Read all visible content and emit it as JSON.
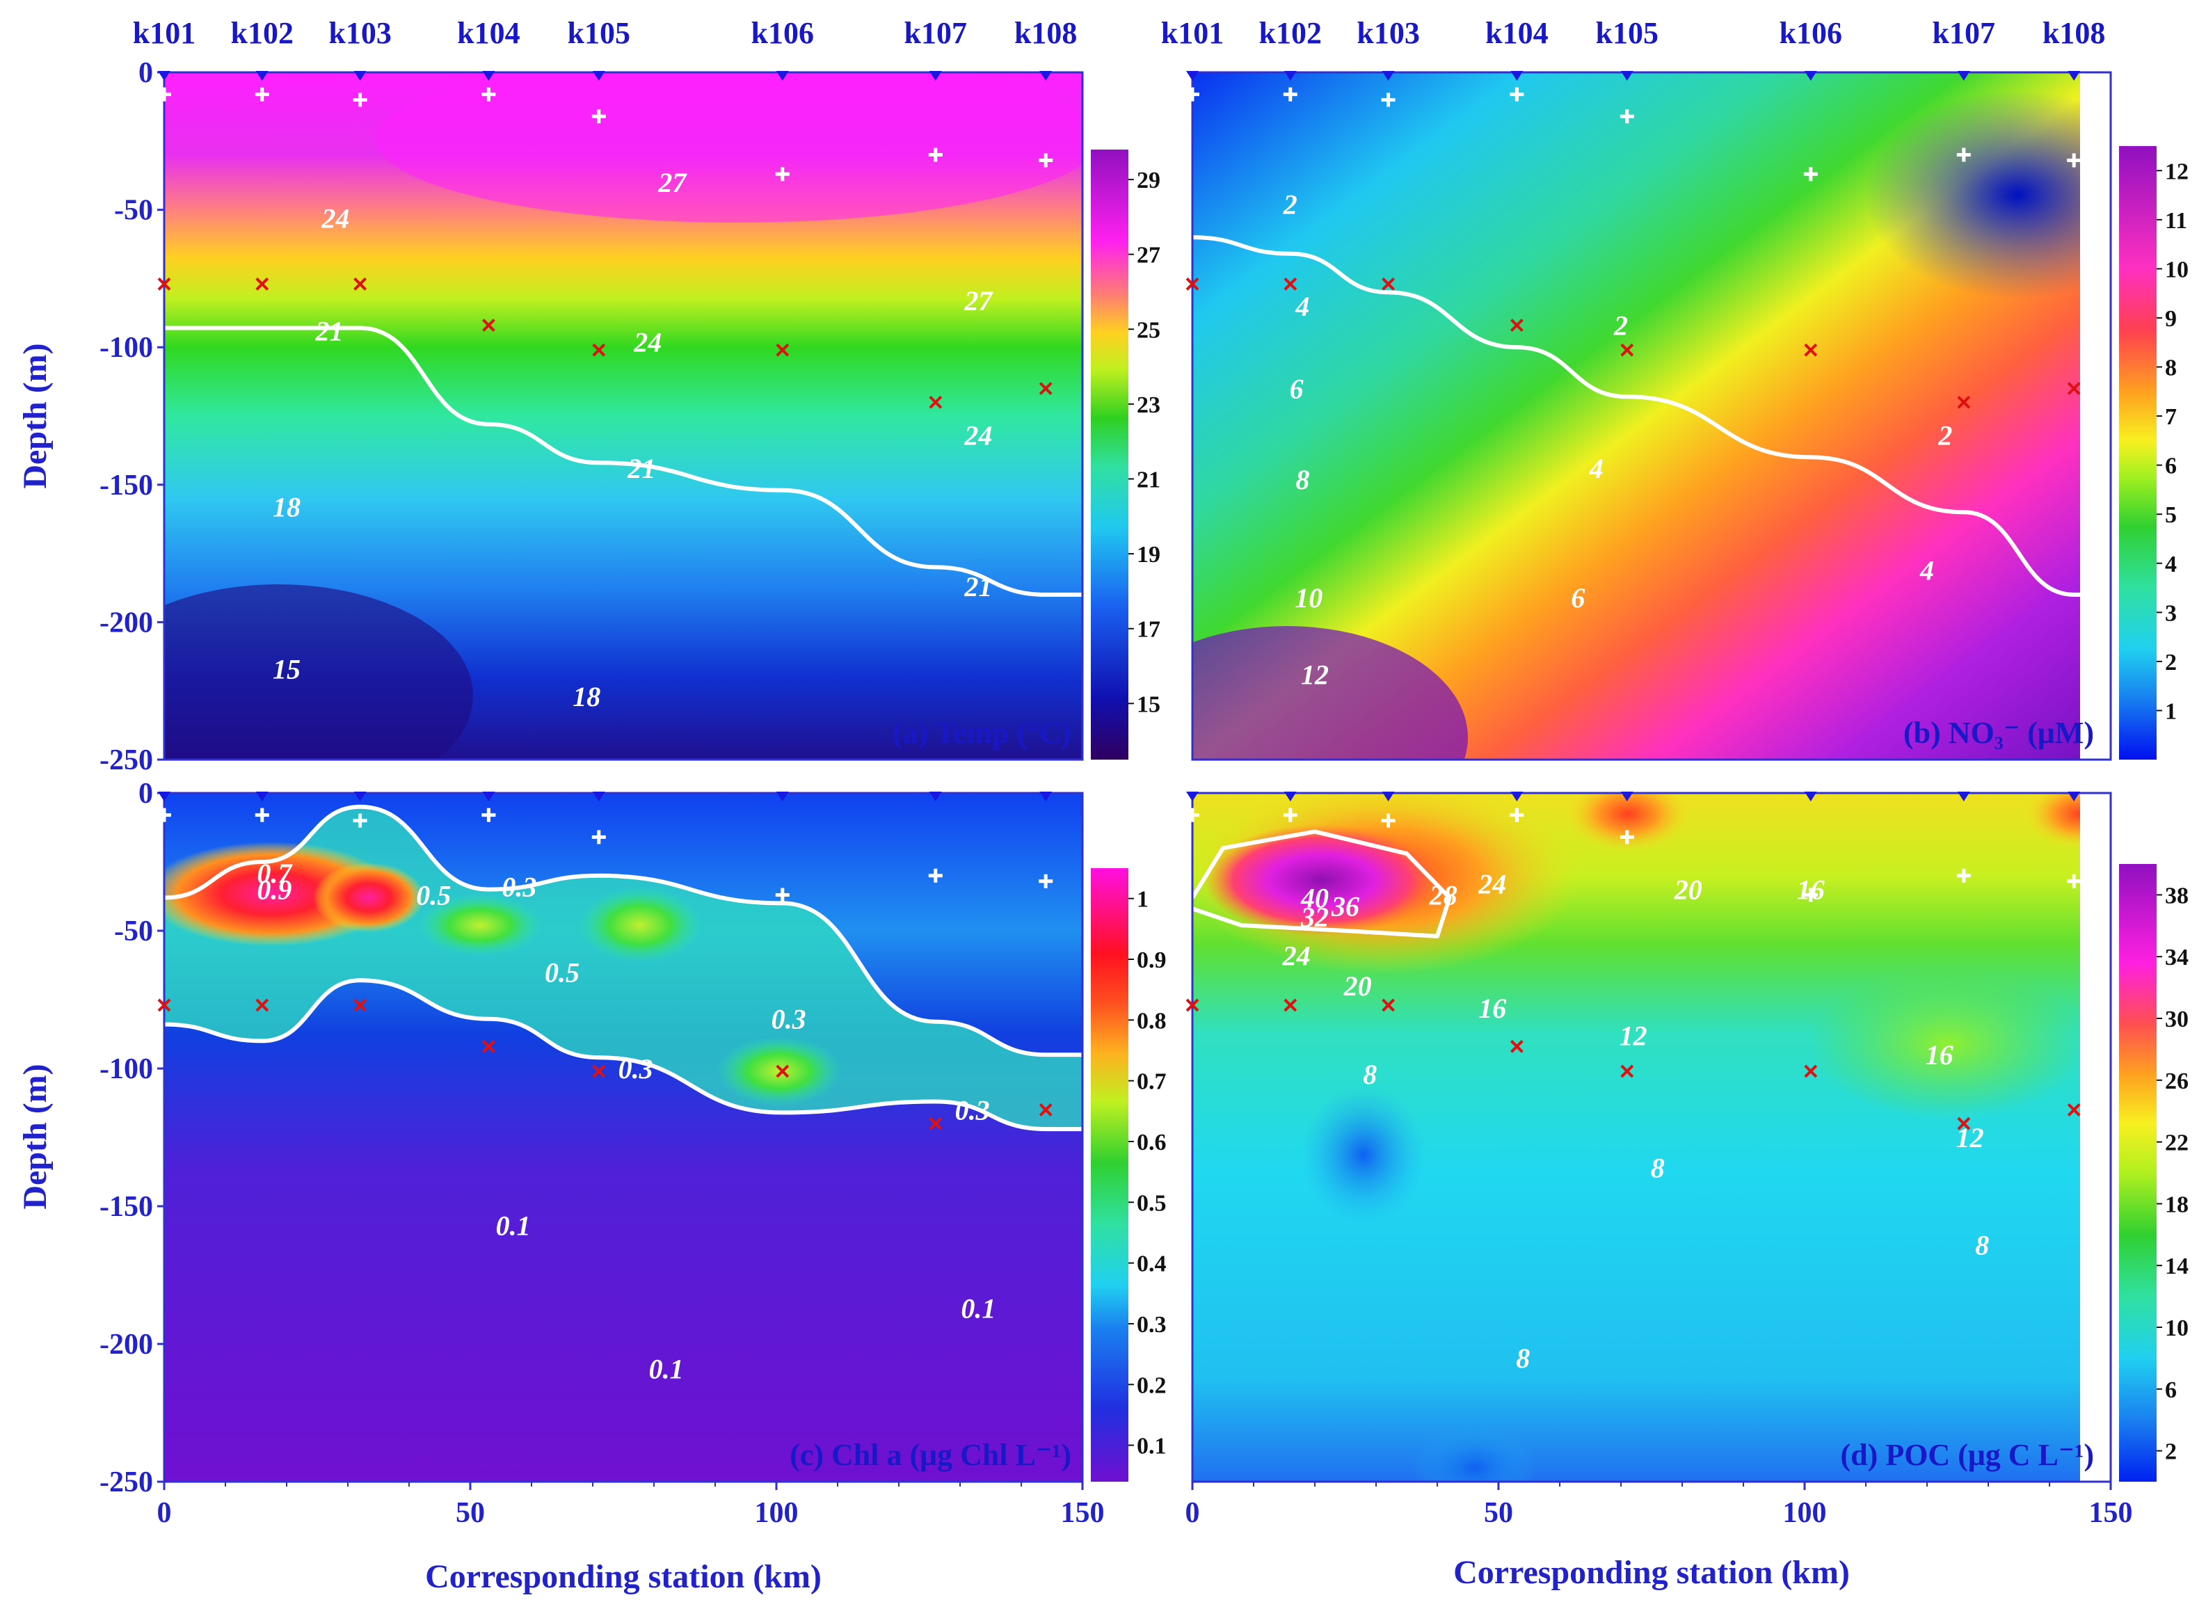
{
  "chart_data": {
    "type": "heatmap",
    "x_label": "Corresponding station (km)",
    "y_label": "Depth (m)",
    "x_ticks": [
      "0",
      "50",
      "100",
      "150"
    ],
    "y_ticks": [
      "0",
      "-50",
      "-100",
      "-150",
      "-200",
      "-250"
    ],
    "xlim": [
      0,
      150
    ],
    "ylim": [
      -250,
      0
    ],
    "stations": [
      {
        "name": "k101",
        "km": 0
      },
      {
        "name": "k102",
        "km": 16
      },
      {
        "name": "k103",
        "km": 32
      },
      {
        "name": "k104",
        "km": 53
      },
      {
        "name": "k105",
        "km": 71
      },
      {
        "name": "k106",
        "km": 101
      },
      {
        "name": "k107",
        "km": 126
      },
      {
        "name": "k108",
        "km": 144
      }
    ],
    "sampling_depths_m": [
      -8,
      -8,
      -10,
      -8,
      -16,
      -37,
      -30,
      -32
    ],
    "dcm_depths_m": [
      -77,
      -77,
      -77,
      -92,
      -101,
      -101,
      -120,
      -115
    ],
    "panels": [
      {
        "id": "a",
        "label": "(a) Temp (°C)",
        "variable": "Temperature",
        "colorbar_ticks": [
          "15",
          "17",
          "19",
          "21",
          "23",
          "25",
          "27",
          "29"
        ],
        "colorbar_range": [
          13.5,
          29.8
        ],
        "highlight_contour_value": 21,
        "highlight_contour_depths_m": [
          -93,
          -93,
          -93,
          -128,
          -142,
          -152,
          -180,
          -190
        ],
        "contour_labels": [
          {
            "text": "24",
            "km": 28,
            "depth": -53
          },
          {
            "text": "27",
            "km": 83,
            "depth": -40
          },
          {
            "text": "27",
            "km": 133,
            "depth": -83
          },
          {
            "text": "21",
            "km": 27,
            "depth": -94
          },
          {
            "text": "24",
            "km": 79,
            "depth": -98
          },
          {
            "text": "24",
            "km": 133,
            "depth": -132
          },
          {
            "text": "21",
            "km": 78,
            "depth": -144
          },
          {
            "text": "21",
            "km": 133,
            "depth": -187
          },
          {
            "text": "18",
            "km": 20,
            "depth": -158
          },
          {
            "text": "15",
            "km": 20,
            "depth": -217
          },
          {
            "text": "18",
            "km": 69,
            "depth": -227
          }
        ]
      },
      {
        "id": "b",
        "label": "(b) NO₃⁻ (μM)",
        "variable": "Nitrate",
        "colorbar_ticks": [
          "1",
          "2",
          "3",
          "4",
          "5",
          "6",
          "7",
          "8",
          "9",
          "10",
          "11",
          "12"
        ],
        "colorbar_range": [
          0,
          12.5
        ],
        "highlight_contour_value": 2,
        "highlight_contour_depths_m": [
          -60,
          -66,
          -80,
          -100,
          -118,
          -140,
          -160,
          -190
        ],
        "contour_labels": [
          {
            "text": "2",
            "km": 16,
            "depth": -48
          },
          {
            "text": "4",
            "km": 18,
            "depth": -85
          },
          {
            "text": "2",
            "km": 70,
            "depth": -92
          },
          {
            "text": "6",
            "km": 17,
            "depth": -115
          },
          {
            "text": "8",
            "km": 18,
            "depth": -148
          },
          {
            "text": "4",
            "km": 66,
            "depth": -144
          },
          {
            "text": "2",
            "km": 123,
            "depth": -132
          },
          {
            "text": "10",
            "km": 19,
            "depth": -191
          },
          {
            "text": "6",
            "km": 63,
            "depth": -191
          },
          {
            "text": "4",
            "km": 120,
            "depth": -181
          },
          {
            "text": "12",
            "km": 20,
            "depth": -219
          }
        ]
      },
      {
        "id": "c",
        "label": "(c) Chl a (μg Chl L⁻¹)",
        "variable": "Chlorophyll a",
        "colorbar_ticks": [
          "0.1",
          "0.2",
          "0.3",
          "0.4",
          "0.5",
          "0.6",
          "0.7",
          "0.8",
          "0.9",
          "1"
        ],
        "colorbar_range": [
          0.04,
          1.05
        ],
        "highlight_contour_value": 0.3,
        "highlight_contour_upper_m": [
          -38,
          -25,
          -5,
          -35,
          -30,
          -40,
          -83,
          -95
        ],
        "highlight_contour_lower_m": [
          -84,
          -90,
          -68,
          -82,
          -96,
          -116,
          -112,
          -122
        ],
        "contour_labels": [
          {
            "text": "0.7",
            "km": 18,
            "depth": -29
          },
          {
            "text": "0.9",
            "km": 18,
            "depth": -35
          },
          {
            "text": "0.5",
            "km": 44,
            "depth": -37
          },
          {
            "text": "0.3",
            "km": 58,
            "depth": -34
          },
          {
            "text": "0.5",
            "km": 65,
            "depth": -65
          },
          {
            "text": "0.3",
            "km": 102,
            "depth": -82
          },
          {
            "text": "0.3",
            "km": 77,
            "depth": -100
          },
          {
            "text": "0.3",
            "km": 132,
            "depth": -115
          },
          {
            "text": "0.1",
            "km": 57,
            "depth": -157
          },
          {
            "text": "0.1",
            "km": 133,
            "depth": -187
          },
          {
            "text": "0.1",
            "km": 82,
            "depth": -209
          }
        ]
      },
      {
        "id": "d",
        "label": "(d) POC (μg C L⁻¹)",
        "variable": "Particulate organic carbon",
        "colorbar_ticks": [
          "2",
          "6",
          "10",
          "14",
          "18",
          "22",
          "26",
          "30",
          "34",
          "38"
        ],
        "colorbar_range": [
          0,
          40
        ],
        "highlight_contour_value": 28,
        "contour_labels": [
          {
            "text": "40",
            "km": 20,
            "depth": -38
          },
          {
            "text": "32",
            "km": 20,
            "depth": -45
          },
          {
            "text": "36",
            "km": 25,
            "depth": -41
          },
          {
            "text": "28",
            "km": 41,
            "depth": -37
          },
          {
            "text": "24",
            "km": 49,
            "depth": -33
          },
          {
            "text": "20",
            "km": 81,
            "depth": -35
          },
          {
            "text": "16",
            "km": 101,
            "depth": -35
          },
          {
            "text": "24",
            "km": 17,
            "depth": -59
          },
          {
            "text": "20",
            "km": 27,
            "depth": -70
          },
          {
            "text": "16",
            "km": 49,
            "depth": -78
          },
          {
            "text": "12",
            "km": 72,
            "depth": -88
          },
          {
            "text": "8",
            "km": 29,
            "depth": -102
          },
          {
            "text": "16",
            "km": 122,
            "depth": -95
          },
          {
            "text": "12",
            "km": 127,
            "depth": -125
          },
          {
            "text": "8",
            "km": 76,
            "depth": -136
          },
          {
            "text": "8",
            "km": 129,
            "depth": -164
          },
          {
            "text": "8",
            "km": 54,
            "depth": -205
          }
        ]
      }
    ]
  }
}
